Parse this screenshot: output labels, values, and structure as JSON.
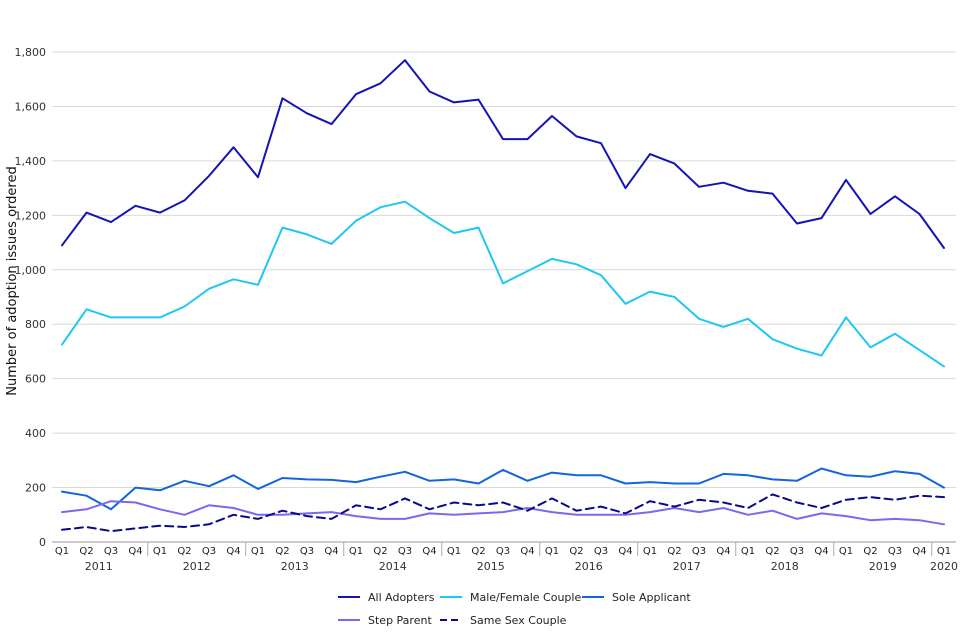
{
  "chart_data": {
    "type": "line",
    "title": "",
    "xlabel": "",
    "ylabel": "Number of adoption issues ordered",
    "ylim": [
      0,
      1800
    ],
    "yticks": [
      0,
      200,
      400,
      600,
      800,
      1000,
      1200,
      1400,
      1600,
      1800
    ],
    "ytick_labels": [
      "0",
      "200",
      "400",
      "600",
      "800",
      "1,000",
      "1,200",
      "1,400",
      "1,600",
      "1,800"
    ],
    "quarter_labels": [
      "Q1",
      "Q2",
      "Q3",
      "Q4",
      "Q1",
      "Q2",
      "Q3",
      "Q4",
      "Q1",
      "Q2",
      "Q3",
      "Q4",
      "Q1",
      "Q2",
      "Q3",
      "Q4",
      "Q1",
      "Q2",
      "Q3",
      "Q4",
      "Q1",
      "Q2",
      "Q3",
      "Q4",
      "Q1",
      "Q2",
      "Q3",
      "Q4",
      "Q1",
      "Q2",
      "Q3",
      "Q4",
      "Q1",
      "Q2",
      "Q3",
      "Q4",
      "Q1"
    ],
    "years": [
      {
        "label": "2011",
        "start": 0,
        "end": 3
      },
      {
        "label": "2012",
        "start": 4,
        "end": 7
      },
      {
        "label": "2013",
        "start": 8,
        "end": 11
      },
      {
        "label": "2014",
        "start": 12,
        "end": 15
      },
      {
        "label": "2015",
        "start": 16,
        "end": 19
      },
      {
        "label": "2016",
        "start": 20,
        "end": 23
      },
      {
        "label": "2017",
        "start": 24,
        "end": 27
      },
      {
        "label": "2018",
        "start": 28,
        "end": 31
      },
      {
        "label": "2019",
        "start": 32,
        "end": 35
      },
      {
        "label": "2020",
        "start": 36,
        "end": 36
      }
    ],
    "grid": true,
    "legend_position": "bottom",
    "series": [
      {
        "name": "All Adopters",
        "color": "#1414b4",
        "dashed": false,
        "values": [
          1090,
          1210,
          1175,
          1235,
          1210,
          1255,
          1345,
          1450,
          1340,
          1630,
          1575,
          1535,
          1645,
          1685,
          1770,
          1655,
          1615,
          1625,
          1480,
          1480,
          1565,
          1490,
          1465,
          1300,
          1425,
          1390,
          1305,
          1320,
          1290,
          1280,
          1170,
          1190,
          1330,
          1205,
          1270,
          1205,
          1080
        ]
      },
      {
        "name": "Male/Female Couple",
        "color": "#1ec8f0",
        "dashed": false,
        "values": [
          725,
          855,
          825,
          825,
          825,
          865,
          930,
          965,
          945,
          1155,
          1130,
          1095,
          1180,
          1230,
          1250,
          1190,
          1135,
          1155,
          950,
          995,
          1040,
          1020,
          980,
          875,
          920,
          900,
          820,
          790,
          820,
          745,
          710,
          685,
          825,
          715,
          765,
          705,
          645
        ]
      },
      {
        "name": "Sole Applicant",
        "color": "#1464dc",
        "dashed": false,
        "values": [
          185,
          170,
          120,
          200,
          190,
          225,
          205,
          245,
          195,
          235,
          230,
          228,
          220,
          240,
          258,
          225,
          230,
          215,
          265,
          225,
          255,
          245,
          245,
          215,
          220,
          215,
          215,
          250,
          245,
          230,
          225,
          270,
          245,
          240,
          260,
          250,
          200
        ]
      },
      {
        "name": "Step Parent",
        "color": "#7b68ee",
        "dashed": false,
        "values": [
          110,
          120,
          150,
          145,
          120,
          100,
          135,
          125,
          100,
          100,
          105,
          110,
          95,
          85,
          85,
          105,
          100,
          105,
          110,
          125,
          110,
          100,
          100,
          100,
          110,
          125,
          110,
          125,
          100,
          115,
          85,
          105,
          95,
          80,
          85,
          80,
          65
        ]
      },
      {
        "name": "Same Sex Couple",
        "color": "#0a0a8c",
        "dashed": true,
        "values": [
          45,
          55,
          40,
          50,
          60,
          55,
          65,
          100,
          85,
          115,
          95,
          85,
          135,
          120,
          160,
          120,
          145,
          135,
          145,
          115,
          160,
          115,
          130,
          105,
          150,
          130,
          155,
          145,
          125,
          175,
          145,
          125,
          155,
          165,
          155,
          170,
          165
        ]
      }
    ]
  }
}
